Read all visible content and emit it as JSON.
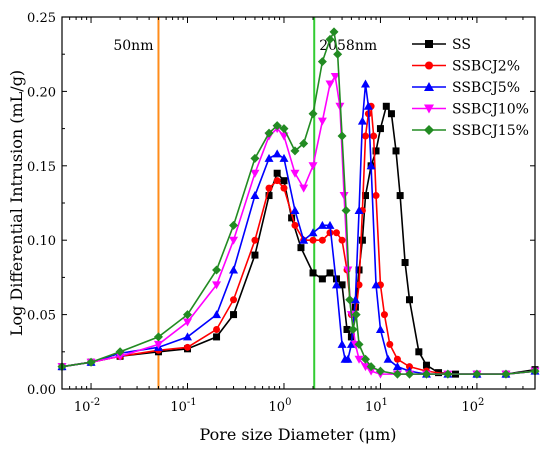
{
  "chart_data": {
    "type": "line",
    "title": "",
    "xlabel": "Pore size Diameter (μm)",
    "ylabel": "Log Differential Intrusion (mL/g)",
    "xscale": "log",
    "xlim": [
      0.005,
      400
    ],
    "ylim": [
      0,
      0.25
    ],
    "yticks": [
      "0.00",
      "0.05",
      "0.10",
      "0.15",
      "0.20",
      "0.25"
    ],
    "xticks": [
      {
        "base": "10",
        "exp": "-2",
        "value": 0.01
      },
      {
        "base": "10",
        "exp": "-1",
        "value": 0.1
      },
      {
        "base": "10",
        "exp": "0",
        "value": 1
      },
      {
        "base": "10",
        "exp": "1",
        "value": 10
      },
      {
        "base": "10",
        "exp": "2",
        "value": 100
      }
    ],
    "grid": false,
    "legend_position": "top-right",
    "reference_lines": [
      {
        "x": 0.05,
        "label": "50nm",
        "color": "#ff8c1a"
      },
      {
        "x": 2.058,
        "label": "2058nm",
        "color": "#33cc33"
      }
    ],
    "series": [
      {
        "name": "SS",
        "color": "#000000",
        "marker": "square",
        "x": [
          0.005,
          0.01,
          0.02,
          0.05,
          0.1,
          0.2,
          0.3,
          0.5,
          0.7,
          0.85,
          1.0,
          1.2,
          1.5,
          2.0,
          2.5,
          3.0,
          3.5,
          4.0,
          4.5,
          5.0,
          5.5,
          6.0,
          6.5,
          7.0,
          8.0,
          9.0,
          10.0,
          11.5,
          13.0,
          14.5,
          16.0,
          18.0,
          20.0,
          25.0,
          30.0,
          40.0,
          60.0,
          100.0,
          200.0,
          400.0
        ],
        "y": [
          0.015,
          0.018,
          0.022,
          0.025,
          0.027,
          0.035,
          0.05,
          0.09,
          0.13,
          0.145,
          0.14,
          0.115,
          0.095,
          0.078,
          0.074,
          0.078,
          0.074,
          0.07,
          0.04,
          0.035,
          0.055,
          0.08,
          0.1,
          0.13,
          0.15,
          0.16,
          0.175,
          0.19,
          0.185,
          0.16,
          0.13,
          0.085,
          0.06,
          0.025,
          0.016,
          0.011,
          0.01,
          0.01,
          0.01,
          0.013
        ]
      },
      {
        "name": "SSBCJ2%",
        "color": "#ff0000",
        "marker": "circle",
        "x": [
          0.005,
          0.01,
          0.02,
          0.05,
          0.1,
          0.2,
          0.3,
          0.5,
          0.7,
          0.85,
          1.0,
          1.3,
          1.6,
          2.0,
          2.5,
          3.0,
          3.5,
          4.0,
          4.5,
          5.0,
          5.5,
          6.0,
          6.5,
          7.0,
          7.5,
          8.0,
          8.5,
          9.0,
          10.0,
          11.0,
          12.5,
          15.0,
          20.0,
          30.0,
          50.0,
          100.0,
          200.0,
          400.0
        ],
        "y": [
          0.015,
          0.018,
          0.022,
          0.026,
          0.028,
          0.04,
          0.06,
          0.1,
          0.135,
          0.14,
          0.135,
          0.11,
          0.1,
          0.1,
          0.1,
          0.105,
          0.105,
          0.1,
          0.08,
          0.05,
          0.05,
          0.07,
          0.12,
          0.17,
          0.185,
          0.19,
          0.17,
          0.13,
          0.07,
          0.05,
          0.03,
          0.02,
          0.015,
          0.012,
          0.01,
          0.01,
          0.01,
          0.012
        ]
      },
      {
        "name": "SSBCJ5%",
        "color": "#0000ff",
        "marker": "triangle-up",
        "x": [
          0.005,
          0.01,
          0.02,
          0.05,
          0.1,
          0.2,
          0.3,
          0.5,
          0.7,
          0.85,
          1.0,
          1.3,
          1.6,
          2.0,
          2.5,
          3.0,
          3.5,
          4.0,
          4.3,
          4.6,
          5.0,
          5.5,
          6.0,
          6.5,
          7.0,
          7.5,
          8.0,
          9.0,
          10.0,
          12.0,
          15.0,
          20.0,
          30.0,
          50.0,
          100.0,
          200.0,
          400.0
        ],
        "y": [
          0.015,
          0.018,
          0.024,
          0.028,
          0.035,
          0.05,
          0.08,
          0.13,
          0.155,
          0.158,
          0.155,
          0.12,
          0.1,
          0.105,
          0.11,
          0.11,
          0.07,
          0.03,
          0.02,
          0.02,
          0.03,
          0.06,
          0.12,
          0.18,
          0.205,
          0.19,
          0.15,
          0.07,
          0.04,
          0.02,
          0.015,
          0.012,
          0.01,
          0.01,
          0.01,
          0.01,
          0.012
        ]
      },
      {
        "name": "SSBCJ10%",
        "color": "#ff00ff",
        "marker": "triangle-down",
        "x": [
          0.005,
          0.01,
          0.02,
          0.05,
          0.1,
          0.2,
          0.3,
          0.5,
          0.7,
          0.85,
          1.0,
          1.3,
          1.6,
          2.0,
          2.5,
          3.0,
          3.4,
          3.8,
          4.2,
          4.6,
          5.0,
          5.5,
          6.0,
          7.0,
          8.0,
          10.0,
          15.0,
          20.0,
          30.0,
          50.0,
          100.0,
          200.0,
          400.0
        ],
        "y": [
          0.015,
          0.018,
          0.022,
          0.03,
          0.045,
          0.07,
          0.1,
          0.145,
          0.17,
          0.175,
          0.17,
          0.145,
          0.135,
          0.15,
          0.18,
          0.205,
          0.21,
          0.19,
          0.13,
          0.08,
          0.05,
          0.03,
          0.02,
          0.015,
          0.012,
          0.01,
          0.01,
          0.01,
          0.01,
          0.01,
          0.01,
          0.01,
          0.012
        ]
      },
      {
        "name": "SSBCJ15%",
        "color": "#228b22",
        "marker": "diamond",
        "x": [
          0.005,
          0.01,
          0.02,
          0.05,
          0.1,
          0.2,
          0.3,
          0.5,
          0.7,
          0.85,
          1.0,
          1.3,
          1.6,
          2.0,
          2.5,
          3.0,
          3.3,
          3.6,
          4.0,
          4.4,
          4.8,
          5.2,
          5.6,
          6.0,
          7.0,
          8.0,
          10.0,
          15.0,
          20.0,
          30.0,
          50.0,
          100.0,
          200.0,
          400.0
        ],
        "y": [
          0.015,
          0.018,
          0.025,
          0.035,
          0.05,
          0.08,
          0.11,
          0.155,
          0.172,
          0.177,
          0.175,
          0.16,
          0.165,
          0.185,
          0.22,
          0.235,
          0.24,
          0.225,
          0.17,
          0.12,
          0.06,
          0.04,
          0.05,
          0.03,
          0.02,
          0.015,
          0.012,
          0.01,
          0.01,
          0.01,
          0.01,
          0.01,
          0.01,
          0.012
        ]
      }
    ]
  }
}
